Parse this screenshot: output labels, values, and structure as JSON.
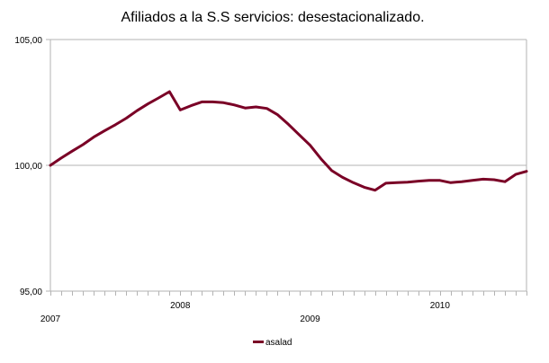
{
  "chart_data": {
    "type": "line",
    "title": "Afiliados a la S.S servicios: desestacionalizado.",
    "xlabel": "",
    "ylabel": "",
    "ylim": [
      95,
      105
    ],
    "y_ticks": [
      "95,00",
      "100,00",
      "105,00"
    ],
    "y_tick_values": [
      95,
      100,
      105
    ],
    "x_tick_labels": [
      {
        "label": "2007",
        "index": 0
      },
      {
        "label": "2008",
        "index": 12
      },
      {
        "label": "2009",
        "index": 24
      },
      {
        "label": "2010",
        "index": 36
      }
    ],
    "n_categories": 45,
    "grid": "horizontal-major",
    "legend_position": "bottom",
    "series": [
      {
        "name": "asalad",
        "color": "#7a0026",
        "values": [
          100.0,
          100.29,
          100.56,
          100.82,
          101.12,
          101.37,
          101.61,
          101.87,
          102.17,
          102.44,
          102.68,
          102.93,
          102.2,
          102.37,
          102.52,
          102.52,
          102.49,
          102.4,
          102.28,
          102.32,
          102.26,
          102.01,
          101.63,
          101.21,
          100.8,
          100.26,
          99.79,
          99.52,
          99.31,
          99.13,
          99.01,
          99.29,
          99.31,
          99.33,
          99.37,
          99.4,
          99.4,
          99.31,
          99.35,
          99.4,
          99.45,
          99.43,
          99.35,
          99.64,
          99.76
        ]
      }
    ]
  }
}
